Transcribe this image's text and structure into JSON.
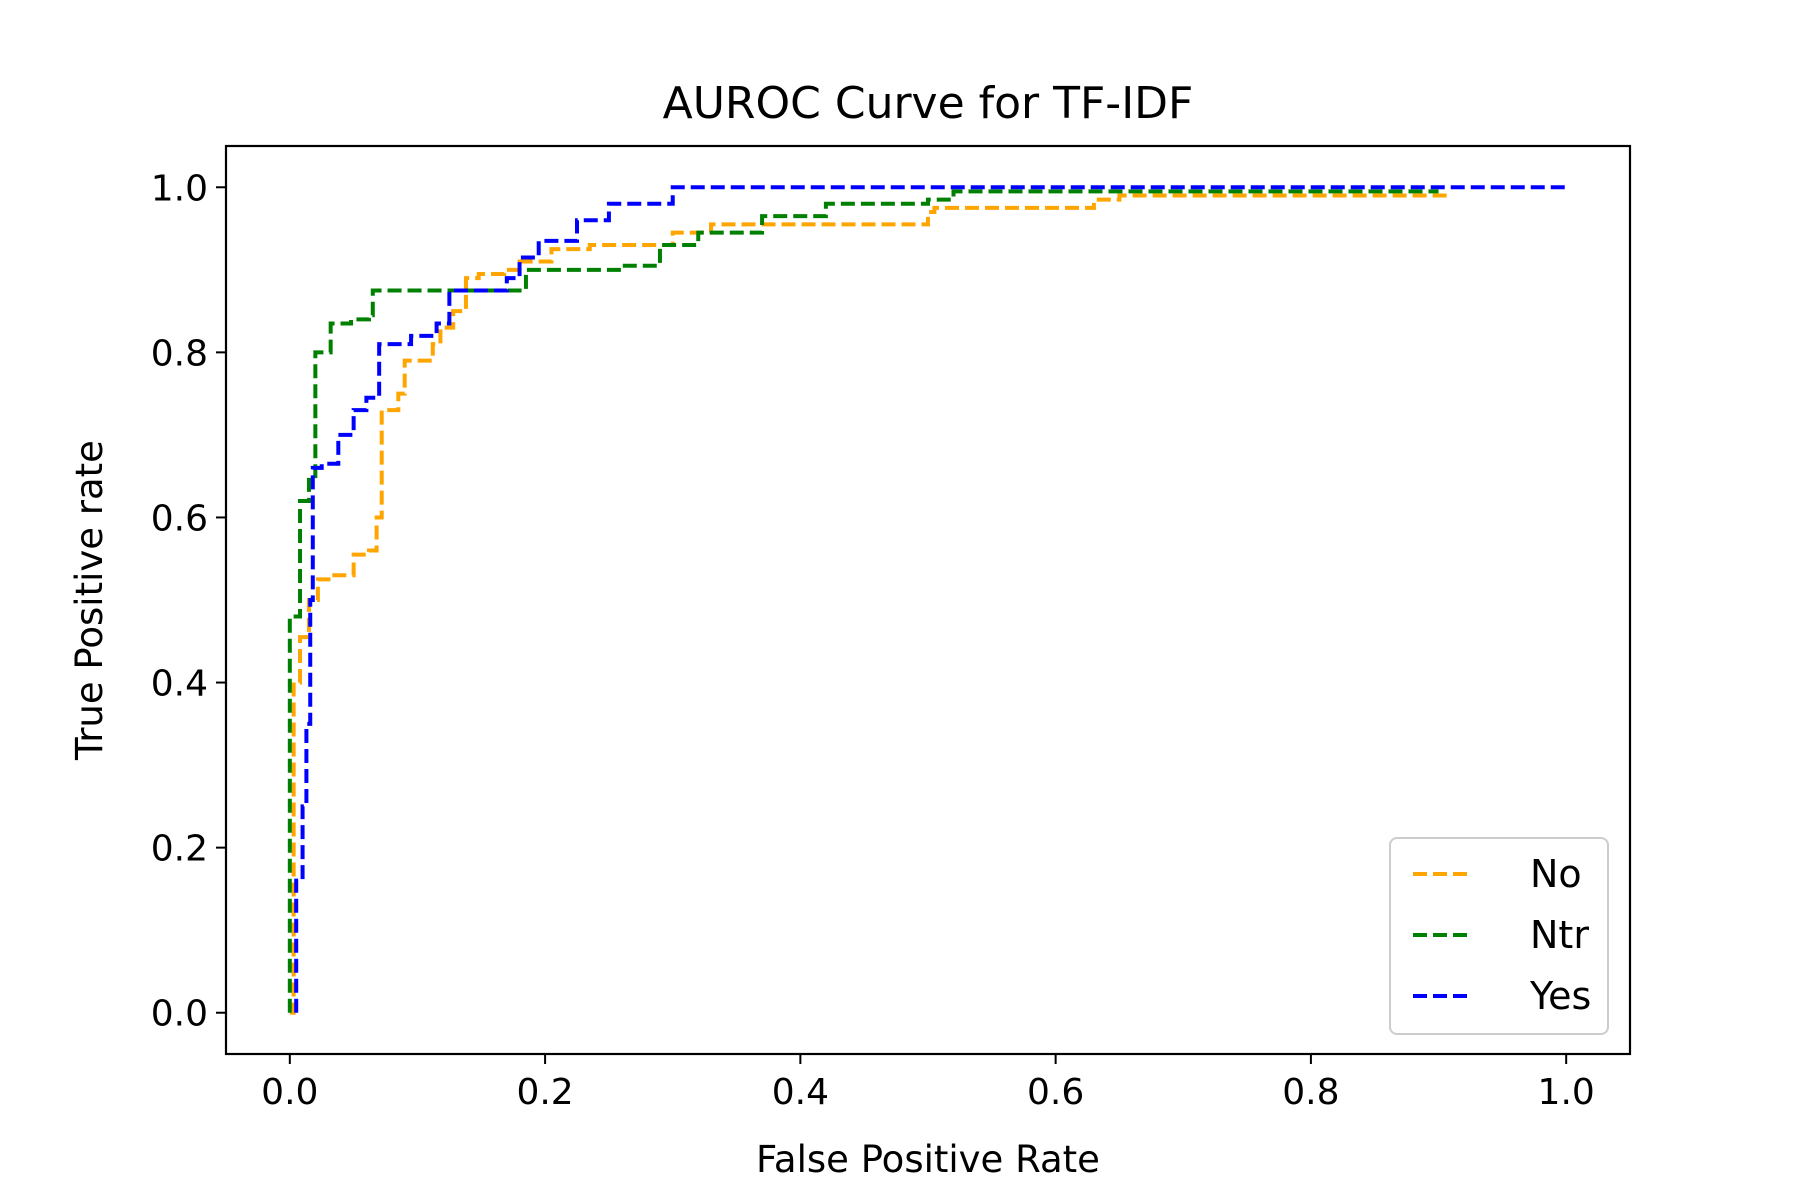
{
  "chart_data": {
    "type": "line",
    "title": "AUROC Curve for TF-IDF",
    "xlabel": "False Positive Rate",
    "ylabel": "True Positive rate",
    "xlim": [
      -0.05,
      1.05
    ],
    "ylim": [
      -0.05,
      1.05
    ],
    "xticks": [
      0.0,
      0.2,
      0.4,
      0.6,
      0.8,
      1.0
    ],
    "yticks": [
      0.0,
      0.2,
      0.4,
      0.6,
      0.8,
      1.0
    ],
    "xtick_labels": [
      "0.0",
      "0.2",
      "0.4",
      "0.6",
      "0.8",
      "1.0"
    ],
    "ytick_labels": [
      "0.0",
      "0.2",
      "0.4",
      "0.6",
      "0.8",
      "1.0"
    ],
    "grid": false,
    "legend_position": "lower-right",
    "line_style": "dashed",
    "series": [
      {
        "name": "No",
        "color": "#ffa500",
        "x": [
          0.0,
          0.003,
          0.003,
          0.008,
          0.008,
          0.015,
          0.015,
          0.022,
          0.022,
          0.032,
          0.032,
          0.05,
          0.05,
          0.062,
          0.062,
          0.068,
          0.068,
          0.072,
          0.072,
          0.085,
          0.085,
          0.09,
          0.09,
          0.112,
          0.112,
          0.118,
          0.118,
          0.128,
          0.128,
          0.138,
          0.138,
          0.148,
          0.148,
          0.168,
          0.168,
          0.18,
          0.18,
          0.205,
          0.205,
          0.235,
          0.235,
          0.3,
          0.3,
          0.33,
          0.33,
          0.38,
          0.38,
          0.5,
          0.5,
          0.505,
          0.505,
          0.63,
          0.63,
          0.65,
          0.65,
          0.91
        ],
        "y": [
          0.0,
          0.0,
          0.4,
          0.4,
          0.455,
          0.455,
          0.5,
          0.5,
          0.525,
          0.525,
          0.53,
          0.53,
          0.555,
          0.555,
          0.56,
          0.56,
          0.6,
          0.6,
          0.73,
          0.73,
          0.75,
          0.75,
          0.79,
          0.79,
          0.81,
          0.81,
          0.83,
          0.83,
          0.85,
          0.85,
          0.89,
          0.89,
          0.895,
          0.895,
          0.9,
          0.9,
          0.91,
          0.91,
          0.925,
          0.925,
          0.93,
          0.93,
          0.945,
          0.945,
          0.955,
          0.955,
          0.955,
          0.955,
          0.97,
          0.97,
          0.975,
          0.975,
          0.985,
          0.985,
          0.99,
          0.99
        ]
      },
      {
        "name": "Ntr",
        "color": "#008000",
        "x": [
          0.0,
          0.0,
          0.0,
          0.008,
          0.008,
          0.015,
          0.015,
          0.02,
          0.02,
          0.032,
          0.032,
          0.048,
          0.048,
          0.062,
          0.062,
          0.065,
          0.065,
          0.185,
          0.185,
          0.26,
          0.26,
          0.29,
          0.29,
          0.32,
          0.32,
          0.37,
          0.37,
          0.42,
          0.42,
          0.5,
          0.5,
          0.52,
          0.52,
          0.9
        ],
        "y": [
          0.0,
          0.0,
          0.48,
          0.48,
          0.62,
          0.62,
          0.65,
          0.65,
          0.8,
          0.8,
          0.835,
          0.835,
          0.84,
          0.84,
          0.845,
          0.845,
          0.875,
          0.875,
          0.9,
          0.9,
          0.905,
          0.905,
          0.93,
          0.93,
          0.945,
          0.945,
          0.965,
          0.965,
          0.98,
          0.98,
          0.985,
          0.985,
          0.995,
          0.995
        ]
      },
      {
        "name": "Yes",
        "color": "#0000ff",
        "x": [
          0.005,
          0.005,
          0.01,
          0.01,
          0.013,
          0.013,
          0.016,
          0.016,
          0.018,
          0.018,
          0.025,
          0.025,
          0.038,
          0.038,
          0.05,
          0.05,
          0.06,
          0.06,
          0.07,
          0.07,
          0.095,
          0.095,
          0.115,
          0.115,
          0.125,
          0.125,
          0.17,
          0.17,
          0.18,
          0.18,
          0.195,
          0.195,
          0.225,
          0.225,
          0.25,
          0.25,
          0.3,
          0.3,
          1.0
        ],
        "y": [
          0.0,
          0.16,
          0.16,
          0.25,
          0.25,
          0.35,
          0.35,
          0.5,
          0.5,
          0.66,
          0.66,
          0.665,
          0.665,
          0.7,
          0.7,
          0.73,
          0.73,
          0.745,
          0.745,
          0.81,
          0.81,
          0.82,
          0.82,
          0.835,
          0.835,
          0.875,
          0.875,
          0.89,
          0.89,
          0.915,
          0.915,
          0.935,
          0.935,
          0.96,
          0.96,
          0.98,
          0.98,
          1.0,
          1.0
        ]
      }
    ]
  }
}
